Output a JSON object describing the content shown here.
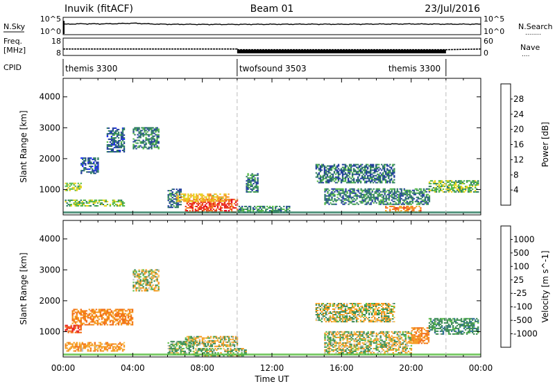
{
  "header": {
    "station": "Inuvik (fitACF)",
    "beam": "Beam 01",
    "date": "23/Jul/2016"
  },
  "strips": {
    "nsky": {
      "left_label": "N.Sky",
      "left_ticks": [
        "10^5",
        "10^0"
      ],
      "right_ticks": [
        "10^5",
        "10^0"
      ],
      "right_label": "N.Search",
      "right_dots": "........"
    },
    "freq": {
      "left_label_top": "Freq.",
      "left_label_bottom": "[MHz]",
      "left_ticks": [
        "18",
        "8"
      ],
      "right_ticks": [
        "60",
        "0"
      ],
      "right_label": "Nave",
      "right_dots": "...."
    },
    "cpid": {
      "label": "CPID",
      "segments": [
        {
          "name": "themis 3300",
          "start_h": 0,
          "end_h": 10
        },
        {
          "name": "twofsound 3503",
          "start_h": 10,
          "end_h": 22
        },
        {
          "name": "themis 3300",
          "start_h": 22,
          "end_h": 24
        }
      ]
    }
  },
  "axes": {
    "xlabel": "Time UT",
    "x_ticks": [
      "00:00",
      "04:00",
      "08:00",
      "12:00",
      "16:00",
      "20:00",
      "00:00"
    ],
    "ylabel": "Slant Range [km]",
    "y_ticks": [
      "1000",
      "2000",
      "3000",
      "4000"
    ]
  },
  "colorbars": {
    "power": {
      "label": "Power [dB]",
      "ticks": [
        "4",
        "8",
        "12",
        "16",
        "20",
        "24",
        "28"
      ],
      "colors": [
        "#1a2bf5",
        "#23409c",
        "#2e7d62",
        "#54b848",
        "#e8d219",
        "#f5a623",
        "#f37521",
        "#e8331a",
        "#e8001a"
      ]
    },
    "velocity": {
      "label": "Velocity [m s^-1]",
      "ticks": [
        "1000",
        "500",
        "100",
        "25",
        "-25",
        "-100",
        "-500",
        "-1000"
      ],
      "colors": [
        "#1a2bc8",
        "#2d6b96",
        "#3c8c55",
        "#5cbe46",
        "#c0c0c0",
        "#f5c55a",
        "#f59a1e",
        "#f26f1a",
        "#ea1f1a"
      ]
    }
  },
  "chart_data": [
    {
      "type": "line",
      "title": "N.Sky",
      "x": [
        0,
        1,
        2,
        3,
        4,
        5,
        6,
        8,
        10,
        12,
        14,
        16,
        18,
        20,
        22,
        24
      ],
      "y_scale": "log",
      "ylim": [
        1,
        100000
      ],
      "values": [
        1000,
        1500,
        1400,
        1600,
        2400,
        1300,
        1000,
        900,
        900,
        1000,
        1100,
        1000,
        1200,
        1300,
        1100,
        1100
      ]
    },
    {
      "type": "line",
      "title": "Freq. [MHz]",
      "x": [
        0,
        10,
        10,
        22,
        24
      ],
      "ylim": [
        8,
        18
      ],
      "values": [
        11.5,
        11.5,
        11,
        11,
        11.5
      ],
      "note_band": {
        "start_h": 10,
        "end_h": 22,
        "min": 8.5,
        "max": 11
      }
    },
    {
      "type": "heatmap",
      "title": "Power [dB]",
      "xlim": [
        0,
        24
      ],
      "ylim": [
        180,
        4600
      ],
      "regions": [
        {
          "t0": 0.1,
          "t1": 1.0,
          "r0": 950,
          "r1": 1200,
          "v": 14
        },
        {
          "t0": 0.1,
          "t1": 3.5,
          "r0": 450,
          "r1": 650,
          "v": 13
        },
        {
          "t0": 1.0,
          "t1": 2.0,
          "r0": 1500,
          "r1": 2000,
          "v": 6
        },
        {
          "t0": 2.5,
          "t1": 3.5,
          "r0": 2200,
          "r1": 3000,
          "v": 7
        },
        {
          "t0": 4.0,
          "t1": 5.5,
          "r0": 2300,
          "r1": 3000,
          "v": 9
        },
        {
          "t0": 6.0,
          "t1": 6.8,
          "r0": 400,
          "r1": 1000,
          "v": 8
        },
        {
          "t0": 7.0,
          "t1": 10.0,
          "r0": 250,
          "r1": 700,
          "v": 26
        },
        {
          "t0": 6.5,
          "t1": 9.5,
          "r0": 600,
          "r1": 850,
          "v": 18
        },
        {
          "t0": 10.0,
          "t1": 13.0,
          "r0": 250,
          "r1": 450,
          "v": 10
        },
        {
          "t0": 10.5,
          "t1": 11.2,
          "r0": 900,
          "r1": 1500,
          "v": 8
        },
        {
          "t0": 14.5,
          "t1": 19.0,
          "r0": 1200,
          "r1": 1800,
          "v": 8
        },
        {
          "t0": 15.0,
          "t1": 21.0,
          "r0": 500,
          "r1": 1000,
          "v": 9
        },
        {
          "t0": 18.5,
          "t1": 20.5,
          "r0": 250,
          "r1": 450,
          "v": 22
        },
        {
          "t0": 21.0,
          "t1": 23.8,
          "r0": 900,
          "r1": 1300,
          "v": 12
        }
      ]
    },
    {
      "type": "heatmap",
      "title": "Velocity [m s^-1]",
      "xlim": [
        0,
        24
      ],
      "ylim": [
        180,
        4600
      ],
      "regions": [
        {
          "t0": 0.1,
          "t1": 1.0,
          "r0": 950,
          "r1": 1200,
          "v": -1000
        },
        {
          "t0": 0.1,
          "t1": 3.5,
          "r0": 350,
          "r1": 650,
          "v": -300
        },
        {
          "t0": 0.5,
          "t1": 4.0,
          "r0": 1200,
          "r1": 1700,
          "v": -500
        },
        {
          "t0": 4.0,
          "t1": 5.5,
          "r0": 2300,
          "r1": 3000,
          "v": 0
        },
        {
          "t0": 6.0,
          "t1": 7.5,
          "r0": 250,
          "r1": 700,
          "v": 200
        },
        {
          "t0": 7.0,
          "t1": 10.0,
          "r0": 500,
          "r1": 850,
          "v": 0
        },
        {
          "t0": 7.5,
          "t1": 10.5,
          "r0": 200,
          "r1": 450,
          "v": 100
        },
        {
          "t0": 14.5,
          "t1": 19.0,
          "r0": 1300,
          "r1": 1900,
          "v": 0
        },
        {
          "t0": 15.0,
          "t1": 20.0,
          "r0": 250,
          "r1": 1000,
          "v": 0
        },
        {
          "t0": 20.0,
          "t1": 21.0,
          "r0": 600,
          "r1": 1100,
          "v": -500
        },
        {
          "t0": 21.0,
          "t1": 23.8,
          "r0": 900,
          "r1": 1400,
          "v": 300
        }
      ]
    }
  ]
}
